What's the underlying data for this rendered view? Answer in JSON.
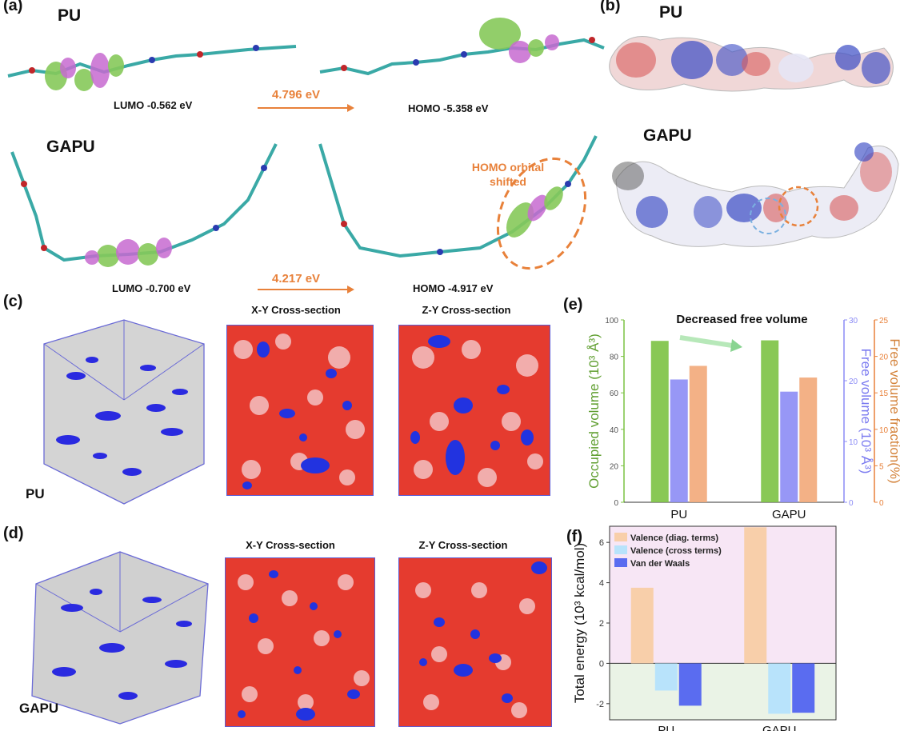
{
  "panel_labels": {
    "a": "(a)",
    "b": "(b)",
    "c": "(c)",
    "d": "(d)",
    "e": "(e)",
    "f": "(f)"
  },
  "panel_a": {
    "pu_title": "PU",
    "gapu_title": "GAPU",
    "pu_lumo": "LUMO  -0.562 eV",
    "pu_homo": "HOMO  -5.358  eV",
    "pu_gap": "4.796 eV",
    "gapu_lumo": "LUMO  -0.700 eV",
    "gapu_homo": "HOMO  -4.917 eV",
    "gapu_gap": "4.217 eV",
    "annotation_line1": "HOMO orbital",
    "annotation_line2": "shifted"
  },
  "panel_b": {
    "pu_title": "PU",
    "gapu_title": "GAPU"
  },
  "panel_c": {
    "label": "PU",
    "xy_title": "X-Y Cross-section",
    "zy_title": "Z-Y Cross-section"
  },
  "panel_d": {
    "label": "GAPU",
    "xy_title": "X-Y Cross-section",
    "zy_title": "Z-Y Cross-section"
  },
  "colors": {
    "accent_orange": "#e8813a",
    "green": "#7cc242",
    "blue": "#8c8cf5",
    "salmon": "#f2a979",
    "peach": "#f8cfaa",
    "lightblue": "#b8e3fb",
    "royalblue": "#5a6cf0"
  },
  "chart_data": [
    {
      "type": "bar",
      "panel": "e",
      "title": "Decreased free volume",
      "categories": [
        "PU",
        "GAPU"
      ],
      "axes": {
        "left": {
          "label": "Occupied volume (10³ Å³)",
          "ylim": [
            0,
            100
          ],
          "ticks": [
            "0",
            "20",
            "40",
            "60",
            "80",
            "100"
          ]
        },
        "mid": {
          "label": "Free volume (10³ Å³)",
          "ylim": [
            0,
            30
          ],
          "ticks": [
            "0",
            "10",
            "20",
            "30"
          ]
        },
        "right": {
          "label": "Free volume fraction(%)",
          "ylim": [
            0,
            25
          ],
          "ticks": [
            "0",
            "5",
            "10",
            "15",
            "20",
            "25"
          ]
        }
      },
      "series": [
        {
          "axis": "left",
          "values": [
            88.5,
            88.8
          ]
        },
        {
          "axis": "mid",
          "values": [
            20.2,
            18.2
          ]
        },
        {
          "axis": "right",
          "values": [
            18.7,
            17.1
          ]
        }
      ]
    },
    {
      "type": "bar",
      "panel": "f",
      "categories": [
        "PU",
        "GAPU"
      ],
      "ylabel": "Total energy (10³ kcal/mol)",
      "ylim": [
        -2.8,
        6.8
      ],
      "yticks": [
        "-2",
        "0",
        "2",
        "4",
        "6"
      ],
      "series": [
        {
          "name": "Valence (diag. terms)",
          "values": [
            3.75,
            6.75
          ]
        },
        {
          "name": "Valence (cross terms)",
          "values": [
            -1.35,
            -2.5
          ]
        },
        {
          "name": "Van der Waals",
          "values": [
            -2.1,
            -2.45
          ]
        }
      ]
    }
  ]
}
